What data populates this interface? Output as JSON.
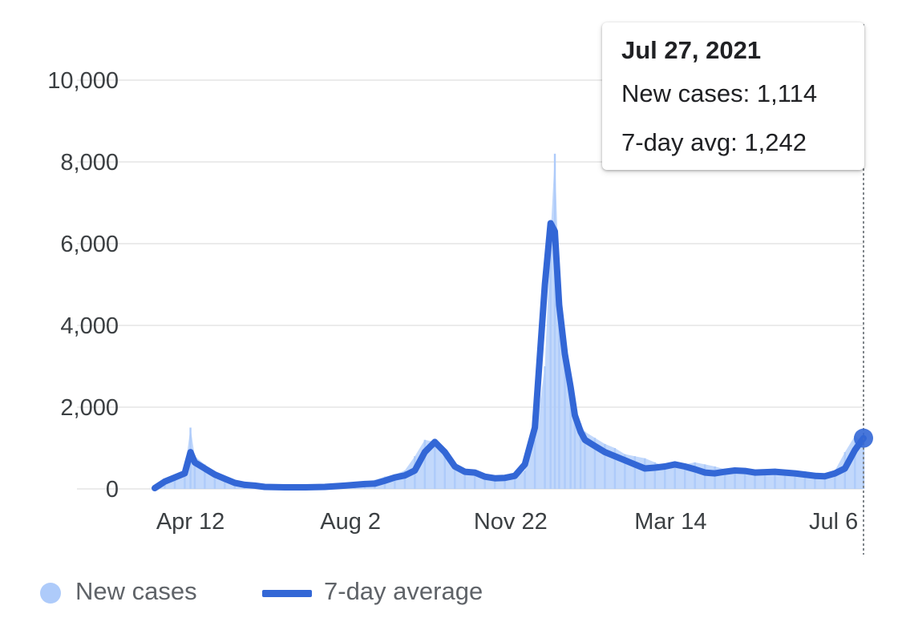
{
  "chart_data": {
    "type": "bar",
    "y_ticks": [
      0,
      2000,
      4000,
      6000,
      8000,
      10000
    ],
    "y_tick_labels": [
      "0",
      "2,000",
      "4,000",
      "6,000",
      "8,000",
      "10,000"
    ],
    "ylim": [
      0,
      10000
    ],
    "x_tick_labels": [
      "Apr 12",
      "Aug 2",
      "Nov 22",
      "Mar 14",
      "Jul 6"
    ],
    "x_ticks": [
      "2020-04-12",
      "2020-08-02",
      "2020-11-22",
      "2021-03-14",
      "2021-07-06"
    ],
    "x_range": [
      "2020-03-18",
      "2021-07-27"
    ],
    "grid": "horizontal",
    "legend_position": "bottom-left",
    "series": [
      {
        "name": "New cases",
        "type": "bar",
        "color": "#aecbfa",
        "x": [
          "2020-03-18",
          "2020-03-25",
          "2020-04-01",
          "2020-04-08",
          "2020-04-12",
          "2020-04-15",
          "2020-04-22",
          "2020-04-29",
          "2020-05-06",
          "2020-05-13",
          "2020-05-20",
          "2020-05-27",
          "2020-06-03",
          "2020-06-10",
          "2020-06-17",
          "2020-06-24",
          "2020-07-01",
          "2020-07-08",
          "2020-07-15",
          "2020-07-22",
          "2020-07-29",
          "2020-08-05",
          "2020-08-12",
          "2020-08-19",
          "2020-08-26",
          "2020-09-02",
          "2020-09-09",
          "2020-09-16",
          "2020-09-23",
          "2020-09-30",
          "2020-10-07",
          "2020-10-14",
          "2020-10-21",
          "2020-10-28",
          "2020-11-04",
          "2020-11-11",
          "2020-11-18",
          "2020-11-25",
          "2020-12-02",
          "2020-12-09",
          "2020-12-16",
          "2020-12-20",
          "2020-12-23",
          "2020-12-26",
          "2020-12-30",
          "2021-01-03",
          "2021-01-06",
          "2021-01-10",
          "2021-01-13",
          "2021-01-20",
          "2021-01-27",
          "2021-02-03",
          "2021-02-10",
          "2021-02-17",
          "2021-02-24",
          "2021-03-03",
          "2021-03-10",
          "2021-03-17",
          "2021-03-24",
          "2021-03-31",
          "2021-04-07",
          "2021-04-14",
          "2021-04-21",
          "2021-04-28",
          "2021-05-05",
          "2021-05-12",
          "2021-05-19",
          "2021-05-26",
          "2021-06-02",
          "2021-06-09",
          "2021-06-16",
          "2021-06-23",
          "2021-06-30",
          "2021-07-07",
          "2021-07-14",
          "2021-07-21",
          "2021-07-27"
        ],
        "values": [
          50,
          150,
          300,
          450,
          1500,
          800,
          600,
          400,
          300,
          200,
          150,
          100,
          80,
          60,
          60,
          50,
          60,
          60,
          80,
          100,
          120,
          140,
          180,
          220,
          300,
          350,
          450,
          800,
          1200,
          1150,
          900,
          600,
          450,
          380,
          320,
          280,
          300,
          260,
          450,
          1200,
          3000,
          6200,
          8200,
          5000,
          3500,
          2600,
          2000,
          1600,
          1400,
          1250,
          1100,
          1000,
          850,
          800,
          750,
          650,
          550,
          520,
          600,
          650,
          600,
          550,
          480,
          420,
          400,
          450,
          480,
          500,
          450,
          420,
          430,
          400,
          380,
          450,
          900,
          1300,
          1114
        ]
      },
      {
        "name": "7-day average",
        "type": "line",
        "color": "#3367d6",
        "x": [
          "2020-03-18",
          "2020-03-25",
          "2020-04-01",
          "2020-04-08",
          "2020-04-12",
          "2020-04-15",
          "2020-04-22",
          "2020-04-29",
          "2020-05-06",
          "2020-05-13",
          "2020-05-20",
          "2020-05-27",
          "2020-06-03",
          "2020-06-17",
          "2020-07-01",
          "2020-07-15",
          "2020-07-29",
          "2020-08-05",
          "2020-08-12",
          "2020-08-19",
          "2020-08-26",
          "2020-09-02",
          "2020-09-09",
          "2020-09-16",
          "2020-09-23",
          "2020-09-30",
          "2020-10-07",
          "2020-10-14",
          "2020-10-21",
          "2020-10-28",
          "2020-11-04",
          "2020-11-11",
          "2020-11-18",
          "2020-11-25",
          "2020-12-02",
          "2020-12-09",
          "2020-12-16",
          "2020-12-20",
          "2020-12-23",
          "2020-12-26",
          "2020-12-30",
          "2021-01-03",
          "2021-01-06",
          "2021-01-10",
          "2021-01-13",
          "2021-01-20",
          "2021-01-27",
          "2021-02-03",
          "2021-02-10",
          "2021-02-17",
          "2021-02-24",
          "2021-03-03",
          "2021-03-10",
          "2021-03-17",
          "2021-03-24",
          "2021-03-31",
          "2021-04-07",
          "2021-04-14",
          "2021-04-21",
          "2021-04-28",
          "2021-05-05",
          "2021-05-12",
          "2021-05-19",
          "2021-05-26",
          "2021-06-02",
          "2021-06-09",
          "2021-06-16",
          "2021-06-23",
          "2021-06-30",
          "2021-07-07",
          "2021-07-14",
          "2021-07-21",
          "2021-07-27"
        ],
        "values": [
          20,
          180,
          280,
          380,
          900,
          650,
          500,
          350,
          250,
          150,
          100,
          80,
          50,
          40,
          40,
          50,
          80,
          100,
          120,
          130,
          200,
          280,
          330,
          450,
          900,
          1150,
          900,
          550,
          420,
          400,
          300,
          260,
          270,
          320,
          600,
          1500,
          5000,
          6500,
          6300,
          4500,
          3300,
          2500,
          1800,
          1400,
          1200,
          1050,
          900,
          800,
          700,
          600,
          500,
          520,
          550,
          600,
          550,
          480,
          400,
          380,
          420,
          450,
          440,
          400,
          410,
          420,
          400,
          380,
          350,
          320,
          310,
          380,
          500,
          950,
          1242
        ]
      }
    ]
  },
  "tooltip": {
    "date": "Jul 27, 2021",
    "new_cases_label": "New cases: 1,114",
    "avg_label": "7-day avg: 1,242"
  },
  "legend": {
    "new_cases": "New cases",
    "avg": "7-day average"
  }
}
